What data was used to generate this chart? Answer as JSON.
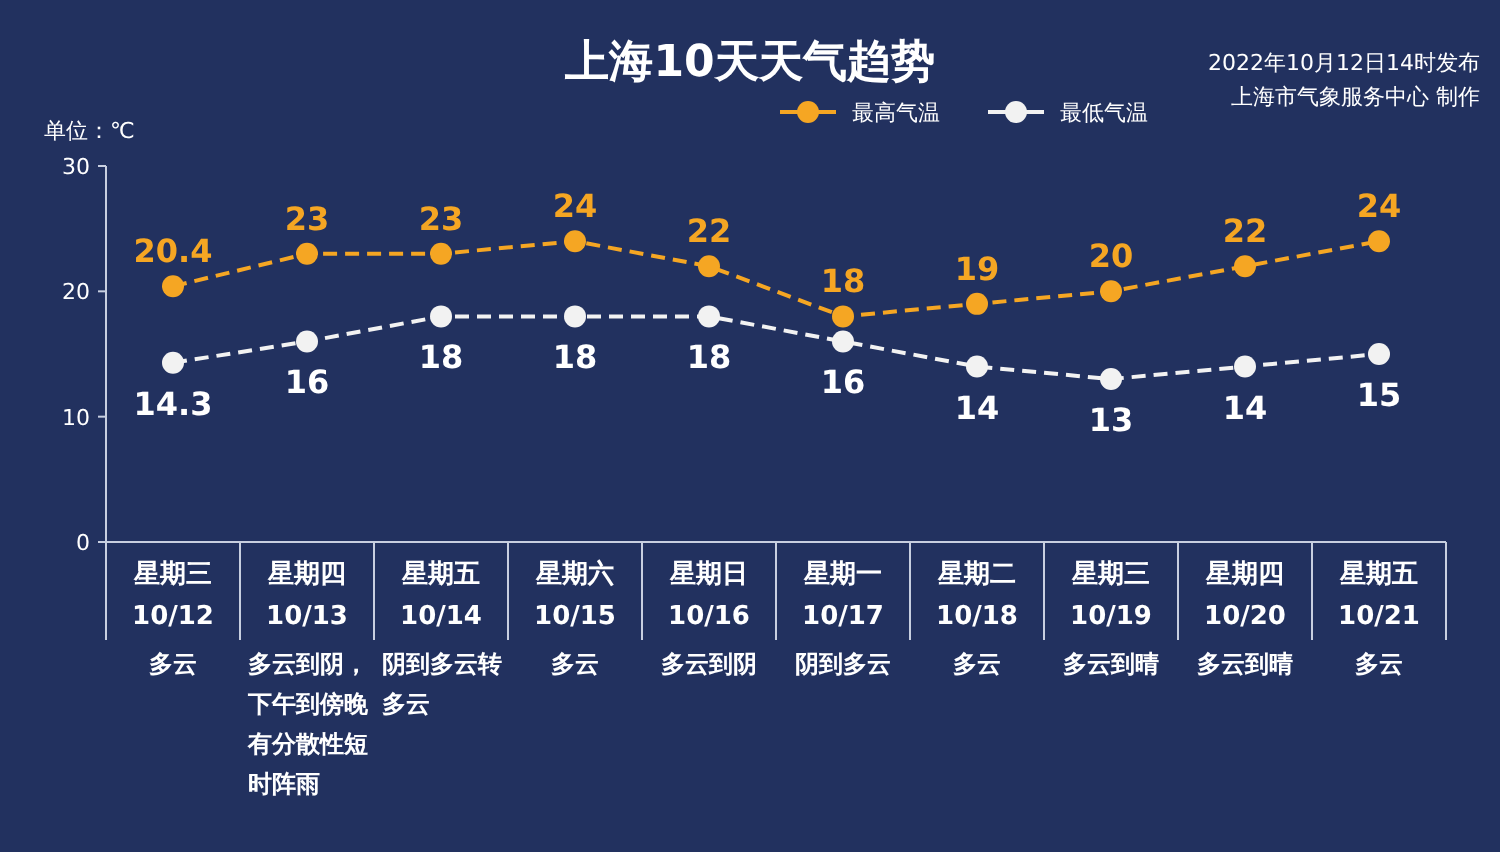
{
  "chart_data": {
    "type": "line",
    "title": "上海10天天气趋势",
    "ylabel": "单位：℃",
    "categories": [
      "星期三\n10/12",
      "星期四\n10/13",
      "星期五\n10/14",
      "星期六\n10/15",
      "星期日\n10/16",
      "星期一\n10/17",
      "星期二\n10/18",
      "星期三\n10/19",
      "星期四\n10/20",
      "星期五\n10/21"
    ],
    "series": [
      {
        "name": "最高气温",
        "color": "#f5a623",
        "values": [
          20.4,
          23,
          23,
          24,
          22,
          18,
          19,
          20,
          22,
          24
        ]
      },
      {
        "name": "最低气温",
        "color": "#f2f2f2",
        "values": [
          14.3,
          16,
          18,
          18,
          18,
          16,
          14,
          13,
          14,
          15
        ]
      }
    ],
    "ylim": [
      0,
      30
    ],
    "yticks": [
      0,
      10,
      20,
      30
    ],
    "grid": false,
    "legend": "top right",
    "marker": "circle",
    "line_style": "dashed",
    "data_labels": true,
    "annotations": [
      "2022年10月12日14时发布",
      "上海市气象服务中心 制作",
      "多云",
      "多云到阴，下午到傍晚有分散性短时阵雨",
      "阴到多云转多云",
      "多云",
      "多云到阴",
      "阴到多云",
      "多云",
      "多云到晴",
      "多云到晴",
      "多云"
    ]
  }
}
